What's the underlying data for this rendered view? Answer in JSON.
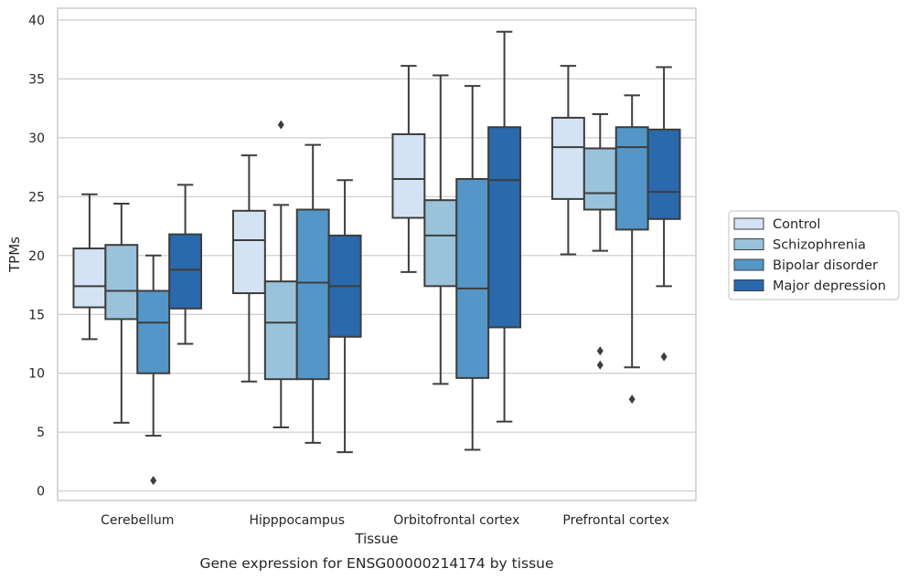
{
  "caption": "Gene expression for ENSG00000214174 by tissue",
  "chart_data": {
    "type": "box",
    "xlabel": "Tissue",
    "ylabel": "TPMs",
    "ylim": [
      -0.8,
      41
    ],
    "yticks": [
      0,
      5,
      10,
      15,
      20,
      25,
      30,
      35,
      40
    ],
    "grid": "horizontal",
    "legend_position": "right",
    "categories": [
      "Cerebellum",
      "Hipppocampus",
      "Orbitofrontal cortex",
      "Prefrontal cortex"
    ],
    "series": [
      {
        "name": "Control",
        "color": "#d4e3f3",
        "boxes": [
          {
            "whislo": 12.9,
            "q1": 15.6,
            "med": 17.4,
            "q3": 20.6,
            "whishi": 25.2,
            "fliers": []
          },
          {
            "whislo": 9.3,
            "q1": 16.8,
            "med": 21.3,
            "q3": 23.8,
            "whishi": 28.5,
            "fliers": []
          },
          {
            "whislo": 18.6,
            "q1": 23.2,
            "med": 26.5,
            "q3": 30.3,
            "whishi": 36.1,
            "fliers": []
          },
          {
            "whislo": 20.1,
            "q1": 24.8,
            "med": 29.2,
            "q3": 31.7,
            "whishi": 36.1,
            "fliers": []
          }
        ]
      },
      {
        "name": "Schizophrenia",
        "color": "#9ac2db",
        "boxes": [
          {
            "whislo": 5.8,
            "q1": 14.6,
            "med": 17.0,
            "q3": 20.9,
            "whishi": 24.4,
            "fliers": []
          },
          {
            "whislo": 5.4,
            "q1": 9.5,
            "med": 14.3,
            "q3": 17.8,
            "whishi": 24.3,
            "fliers": [
              31.1
            ]
          },
          {
            "whislo": 9.1,
            "q1": 17.4,
            "med": 21.7,
            "q3": 24.7,
            "whishi": 35.3,
            "fliers": []
          },
          {
            "whislo": 20.4,
            "q1": 23.9,
            "med": 25.3,
            "q3": 29.1,
            "whishi": 32.0,
            "fliers": [
              10.7,
              11.9
            ]
          }
        ]
      },
      {
        "name": "Bipolar disorder",
        "color": "#5496c7",
        "boxes": [
          {
            "whislo": 4.7,
            "q1": 10.0,
            "med": 14.3,
            "q3": 17.0,
            "whishi": 20.0,
            "fliers": [
              0.9
            ]
          },
          {
            "whislo": 4.1,
            "q1": 9.5,
            "med": 17.7,
            "q3": 23.9,
            "whishi": 29.4,
            "fliers": []
          },
          {
            "whislo": 3.5,
            "q1": 9.6,
            "med": 17.2,
            "q3": 26.5,
            "whishi": 34.4,
            "fliers": []
          },
          {
            "whislo": 10.5,
            "q1": 22.2,
            "med": 29.2,
            "q3": 30.9,
            "whishi": 33.6,
            "fliers": [
              7.8
            ]
          }
        ]
      },
      {
        "name": "Major depression",
        "color": "#2a69ab",
        "boxes": [
          {
            "whislo": 12.5,
            "q1": 15.5,
            "med": 18.8,
            "q3": 21.8,
            "whishi": 26.0,
            "fliers": []
          },
          {
            "whislo": 3.3,
            "q1": 13.1,
            "med": 17.4,
            "q3": 21.7,
            "whishi": 26.4,
            "fliers": []
          },
          {
            "whislo": 5.9,
            "q1": 13.9,
            "med": 26.4,
            "q3": 30.9,
            "whishi": 39.0,
            "fliers": []
          },
          {
            "whislo": 17.4,
            "q1": 23.1,
            "med": 25.4,
            "q3": 30.7,
            "whishi": 36.0,
            "fliers": [
              11.4
            ]
          }
        ]
      }
    ]
  }
}
